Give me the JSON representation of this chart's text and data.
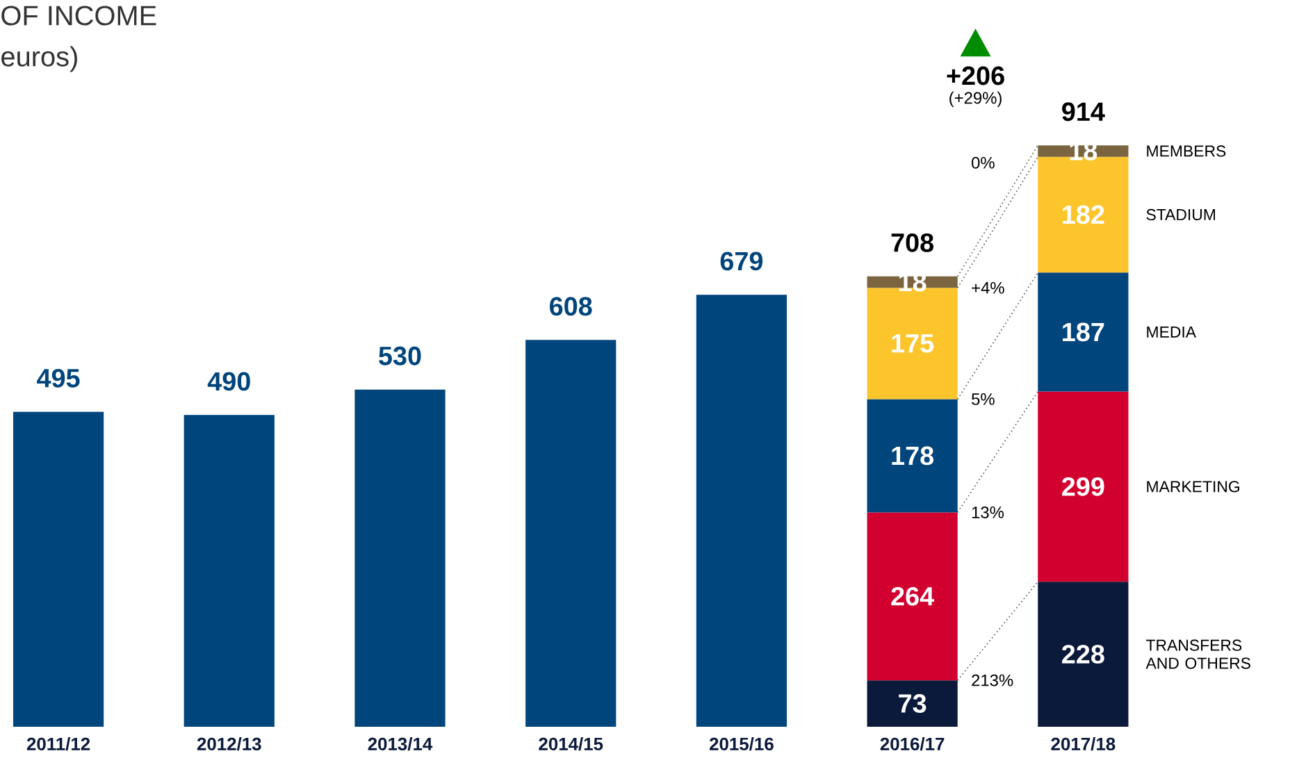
{
  "chart_data": {
    "type": "bar",
    "title": "OF INCOME",
    "subtitle": "euros)",
    "categories": [
      "2011/12",
      "2012/13",
      "2013/14",
      "2014/15",
      "2015/16",
      "2016/17",
      "2017/18"
    ],
    "series": [
      {
        "color": "#00457c",
        "values": [
          495,
          490,
          530,
          608,
          679,
          null,
          null
        ]
      },
      {
        "name": "TRANSFERS AND OTHERS",
        "color": "#0b1a3b",
        "values": [
          null,
          null,
          null,
          null,
          null,
          73,
          228
        ]
      },
      {
        "name": "MARKETING",
        "color": "#d2002f",
        "values": [
          null,
          null,
          null,
          null,
          null,
          264,
          299
        ]
      },
      {
        "name": "MEDIA",
        "color": "#00457c",
        "values": [
          null,
          null,
          null,
          null,
          null,
          178,
          187
        ]
      },
      {
        "name": "STADIUM",
        "color": "#fdc52c",
        "values": [
          null,
          null,
          null,
          null,
          null,
          175,
          182
        ]
      },
      {
        "name": "MEMBERS",
        "color": "#7a6540",
        "values": [
          null,
          null,
          null,
          null,
          null,
          18,
          18
        ]
      }
    ],
    "stacked": true,
    "data_labels": true,
    "legend": false,
    "totals": [
      null,
      null,
      null,
      null,
      null,
      "708",
      "914"
    ],
    "annotations": [
      "+206",
      "(+29%)",
      "0%",
      "+4%",
      "5%",
      "13%",
      "213%"
    ]
  }
}
